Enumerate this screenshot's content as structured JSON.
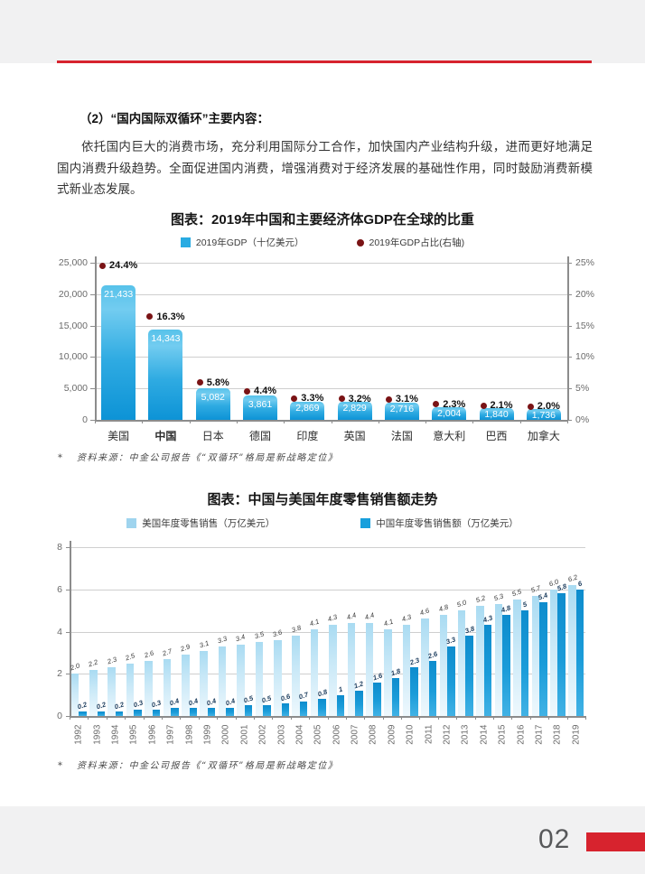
{
  "page": {
    "section_heading": "（2）“国内国际双循环”主要内容：",
    "paragraph": "依托国内巨大的消费市场，充分利用国际分工合作，加快国内产业结构升级，进而更好地满足国内消费升级趋势。全面促进国内消费，增强消费对于经济发展的基础性作用，同时鼓励消费新模式新业态发展。",
    "page_number": "02",
    "accent_red": "#d7232e",
    "band_gray": "#f1f1f2"
  },
  "footnote": {
    "marker": "*",
    "text": "资料来源：中金公司报告《“双循环”格局是新战略定位》"
  },
  "chart1": {
    "title": "图表：2019年中国和主要经济体GDP在全球的比重",
    "legend": [
      {
        "label": "2019年GDP（十亿美元）",
        "marker": "square",
        "color": "#29abe2"
      },
      {
        "label": "2019年GDP占比(右轴)",
        "marker": "circle",
        "color": "#7a1315"
      }
    ],
    "chart_data": {
      "type": "bar",
      "categories": [
        "美国",
        "中国",
        "日本",
        "德国",
        "印度",
        "英国",
        "法国",
        "意大利",
        "巴西",
        "加拿大"
      ],
      "emphasis_category": "中国",
      "series": [
        {
          "name": "2019年GDP（十亿美元）",
          "type": "bar",
          "axis": "left",
          "values": [
            21433,
            14343,
            5082,
            3861,
            2869,
            2829,
            2716,
            2004,
            1840,
            1736
          ],
          "labels": [
            "21,433",
            "14,343",
            "5,082",
            "3,861",
            "2,869",
            "2,829",
            "2,716",
            "2,004",
            "1,840",
            "1,736"
          ]
        },
        {
          "name": "2019年GDP占比(右轴)",
          "type": "scatter",
          "axis": "right",
          "values": [
            24.4,
            16.3,
            5.8,
            4.4,
            3.3,
            3.2,
            3.1,
            2.3,
            2.1,
            2.0
          ],
          "labels": [
            "24.4%",
            "16.3%",
            "5.8%",
            "4.4%",
            "3.3%",
            "3.2%",
            "3.1%",
            "2.3%",
            "2.1%",
            "2.0%"
          ]
        }
      ],
      "left_axis": {
        "ticks": [
          "0",
          "5,000",
          "10,000",
          "15,000",
          "20,000",
          "25,000"
        ],
        "min": 0,
        "max": 25000
      },
      "right_axis": {
        "ticks": [
          "0%",
          "5%",
          "10%",
          "15%",
          "20%",
          "25%"
        ],
        "min": 0,
        "max": 25
      },
      "grid": true,
      "legend_position": "top"
    }
  },
  "chart2": {
    "title": "图表：中国与美国年度零售销售额走势",
    "legend": [
      {
        "label": "美国年度零售销售（万亿美元）",
        "marker": "square",
        "color": "#9fd4ee"
      },
      {
        "label": "中国年度零售销售额（万亿美元）",
        "marker": "square",
        "color": "#189fdc"
      }
    ],
    "chart_data": {
      "type": "bar",
      "categories": [
        "1992",
        "1993",
        "1994",
        "1995",
        "1996",
        "1997",
        "1998",
        "1999",
        "2000",
        "2001",
        "2002",
        "2003",
        "2004",
        "2005",
        "2006",
        "2007",
        "2008",
        "2009",
        "2010",
        "2011",
        "2012",
        "2013",
        "2014",
        "2015",
        "2016",
        "2017",
        "2018",
        "2019"
      ],
      "series": [
        {
          "name": "美国年度零售销售（万亿美元）",
          "values": [
            2.0,
            2.2,
            2.3,
            2.5,
            2.6,
            2.7,
            2.9,
            3.1,
            3.3,
            3.4,
            3.5,
            3.6,
            3.8,
            4.1,
            4.3,
            4.4,
            4.4,
            4.1,
            4.3,
            4.6,
            4.8,
            5.0,
            5.2,
            5.3,
            5.5,
            5.7,
            6.0,
            6.2
          ],
          "labels": [
            "2.0",
            "2.2",
            "2.3",
            "2.5",
            "2.6",
            "2.7",
            "2.9",
            "3.1",
            "3.3",
            "3.4",
            "3.5",
            "3.6",
            "3.8",
            "4.1",
            "4.3",
            "4.4",
            "4.4",
            "4.1",
            "4.3",
            "4.6",
            "4.8",
            "5.0",
            "5.2",
            "5.3",
            "5.5",
            "5.7",
            "6.0",
            "6.2"
          ]
        },
        {
          "name": "中国年度零售销售额（万亿美元）",
          "values": [
            0.2,
            0.2,
            0.2,
            0.3,
            0.3,
            0.4,
            0.4,
            0.4,
            0.4,
            0.5,
            0.5,
            0.6,
            0.7,
            0.8,
            1,
            1.2,
            1.6,
            1.8,
            2.3,
            2.6,
            3.3,
            3.8,
            4.3,
            4.8,
            5,
            5.4,
            5.8,
            6
          ],
          "labels": [
            "0.2",
            "0.2",
            "0.2",
            "0.3",
            "0.3",
            "0.4",
            "0.4",
            "0.4",
            "0.4",
            "0.5",
            "0.5",
            "0.6",
            "0.7",
            "0.8",
            "1",
            "1.2",
            "1.6",
            "1.8",
            "2.3",
            "2.6",
            "3.3",
            "3.8",
            "4.3",
            "4.8",
            "5",
            "5.4",
            "5.8",
            "6"
          ]
        }
      ],
      "ylim": [
        0,
        8
      ],
      "yticks": [
        "0",
        "2",
        "4",
        "6",
        "8"
      ],
      "grid": true,
      "legend_position": "top"
    }
  }
}
